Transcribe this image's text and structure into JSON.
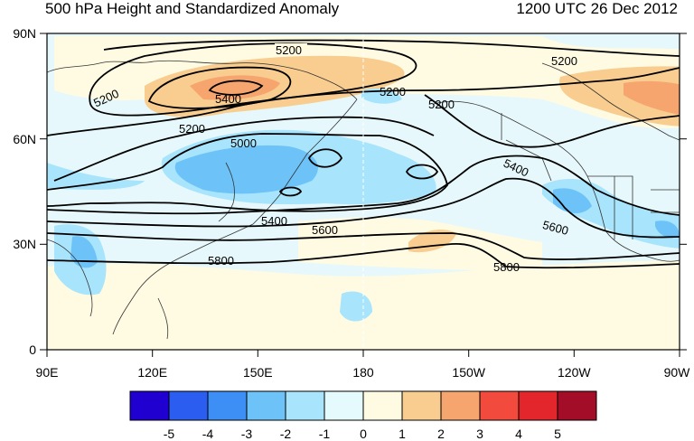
{
  "header": {
    "title": "500 hPa Height and Standardized Anomaly",
    "datetime": "1200 UTC 26 Dec 2012"
  },
  "map": {
    "lon_labels": [
      "90E",
      "120E",
      "150E",
      "180",
      "150W",
      "120W",
      "90W"
    ],
    "lat_labels": [
      "90N",
      "60N",
      "30N",
      "0"
    ],
    "contour_labels": [
      "5200",
      "5200",
      "5400",
      "5200",
      "5000",
      "5200",
      "5200",
      "5200",
      "5400",
      "5600",
      "5800",
      "5400",
      "5600",
      "5800"
    ]
  },
  "colorbar": {
    "labels": [
      "-5",
      "-4",
      "-3",
      "-2",
      "-1",
      "0",
      "1",
      "2",
      "3",
      "4",
      "5"
    ],
    "colors": [
      "#2000d0",
      "#2b5ef0",
      "#3d8ef5",
      "#6dc2f8",
      "#a8e4fb",
      "#e4fafd",
      "#fffbe3",
      "#f8cd8f",
      "#f5a56d",
      "#f24a3c",
      "#e3262c",
      "#a30d28"
    ]
  },
  "colors": {
    "ocean": "#e6f8fb",
    "cool_light": "#a8e4fb",
    "cool_mid": "#6dc2f8",
    "warm_light": "#fffbe3",
    "warm_mid": "#f8cd8f",
    "warm_strong": "#f5a56d"
  }
}
